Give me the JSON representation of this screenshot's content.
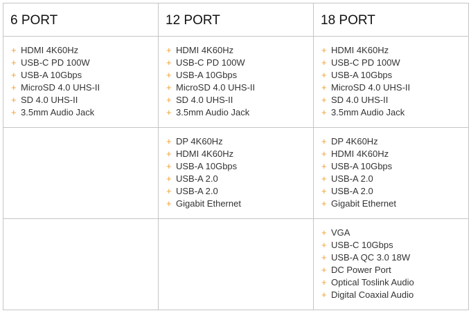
{
  "table": {
    "headers": [
      "6 PORT",
      "12 PORT",
      "18 PORT"
    ],
    "rows": [
      [
        [
          "HDMI 4K60Hz",
          "USB-C PD 100W",
          "USB-A 10Gbps",
          "MicroSD 4.0 UHS-II",
          "SD 4.0 UHS-II",
          "3.5mm Audio Jack"
        ],
        [
          "HDMI 4K60Hz",
          "USB-C PD 100W",
          "USB-A 10Gbps",
          "MicroSD 4.0 UHS-II",
          "SD 4.0 UHS-II",
          "3.5mm Audio Jack"
        ],
        [
          "HDMI 4K60Hz",
          "USB-C PD 100W",
          "USB-A 10Gbps",
          "MicroSD 4.0 UHS-II",
          "SD 4.0 UHS-II",
          "3.5mm Audio Jack"
        ]
      ],
      [
        [],
        [
          "DP 4K60Hz",
          "HDMI 4K60Hz",
          "USB-A 10Gbps",
          "USB-A 2.0",
          "USB-A 2.0",
          "Gigabit Ethernet"
        ],
        [
          "DP 4K60Hz",
          "HDMI 4K60Hz",
          "USB-A 10Gbps",
          "USB-A 2.0",
          "USB-A 2.0",
          "Gigabit Ethernet"
        ]
      ],
      [
        [],
        [],
        [
          "VGA",
          "USB-C 10Gbps",
          "USB-A QC 3.0 18W",
          "DC Power Port",
          "Optical Toslink Audio",
          "Digital Coaxial Audio"
        ]
      ]
    ]
  }
}
